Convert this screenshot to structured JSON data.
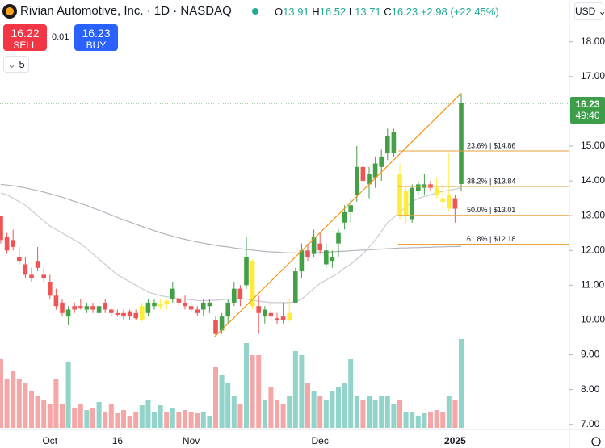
{
  "header": {
    "title": "Rivian Automotive, Inc. · 1D · NASDAQ",
    "o": "O",
    "h": "H",
    "l": "L",
    "c": "C",
    "change": "+2.98 (+22.45%)",
    "sell_price": 16.22,
    "sell": "SELL",
    "spread": 0.01,
    "buy_price": 16.23,
    "buy": "BUY",
    "interval": "5",
    "currency": "USD",
    "countdown": "49:40"
  },
  "chart_data": {
    "type": "candlestick",
    "ylim": [
      6.9,
      19.2
    ],
    "yticks": [
      {
        "value": 7,
        "label": "7.00"
      },
      {
        "value": 8,
        "label": "8.00"
      },
      {
        "value": 9,
        "label": "9.00"
      },
      {
        "value": 10,
        "label": "10.00"
      },
      {
        "value": 11,
        "label": "11.00"
      },
      {
        "value": 12,
        "label": "12.00"
      },
      {
        "value": 13,
        "label": "13.00"
      },
      {
        "value": 14,
        "label": "14.00"
      },
      {
        "value": 15,
        "label": "15.00"
      },
      {
        "value": 16,
        "label": "16.00"
      },
      {
        "value": 17,
        "label": "17.00"
      },
      {
        "value": 18,
        "label": "18.00"
      }
    ],
    "colors": {
      "up": "#43a047",
      "down": "#f05454",
      "highlight": "#ffeb3b",
      "volume_up": "#92d3ca",
      "volume_down": "#f5a6a6",
      "ma_slow": "#b2b5be",
      "ma_fast": "#c9cbd1",
      "trend": "#f7931a",
      "fib": "#e6a23c"
    },
    "categories": [
      null,
      null,
      null,
      null,
      null,
      null,
      null,
      null,
      "Oct",
      null,
      null,
      null,
      null,
      null,
      null,
      null,
      null,
      null,
      null,
      "16",
      null,
      null,
      null,
      null,
      null,
      null,
      null,
      null,
      null,
      null,
      null,
      "Nov",
      null,
      null,
      null,
      null,
      null,
      null,
      null,
      null,
      null,
      null,
      null,
      null,
      null,
      null,
      null,
      null,
      null,
      null,
      null,
      null,
      "Dec",
      null,
      null,
      null,
      null,
      null,
      null,
      null,
      null,
      null,
      null,
      null,
      null,
      null,
      null,
      null,
      null,
      null,
      null,
      null,
      null,
      null,
      "2025",
      null
    ],
    "candles": [
      {
        "o": 13.0,
        "h": 13.0,
        "l": 12.2,
        "c": 12.3,
        "v": 85
      },
      {
        "o": 12.4,
        "h": 12.5,
        "l": 11.9,
        "c": 12.0,
        "v": 60
      },
      {
        "o": 12.3,
        "h": 12.6,
        "l": 12.0,
        "c": 12.1,
        "v": 70
      },
      {
        "o": 11.8,
        "h": 12.1,
        "l": 11.6,
        "c": 11.7,
        "v": 60
      },
      {
        "o": 11.6,
        "h": 11.8,
        "l": 11.2,
        "c": 11.3,
        "v": 55
      },
      {
        "o": 11.3,
        "h": 11.5,
        "l": 11.1,
        "c": 11.2,
        "v": 45
      },
      {
        "o": 11.7,
        "h": 12.1,
        "l": 11.4,
        "c": 11.5,
        "v": 40
      },
      {
        "o": 11.3,
        "h": 11.5,
        "l": 11.1,
        "c": 11.2,
        "v": 35
      },
      {
        "o": 11.1,
        "h": 11.3,
        "l": 10.6,
        "c": 10.7,
        "v": 30
      },
      {
        "o": 10.7,
        "h": 10.9,
        "l": 10.3,
        "c": 10.4,
        "v": 60
      },
      {
        "o": 10.5,
        "h": 10.6,
        "l": 10.1,
        "c": 10.2,
        "v": 30
      },
      {
        "o": 10.1,
        "h": 10.4,
        "l": 9.85,
        "c": 10.3,
        "v": 82
      },
      {
        "o": 10.4,
        "h": 10.5,
        "l": 10.2,
        "c": 10.3,
        "v": 25
      },
      {
        "o": 10.4,
        "h": 10.6,
        "l": 10.3,
        "c": 10.35,
        "v": 30
      },
      {
        "o": 10.3,
        "h": 10.5,
        "l": 10.2,
        "c": 10.4,
        "v": 22
      },
      {
        "o": 10.4,
        "h": 10.5,
        "l": 10.2,
        "c": 10.3,
        "v": 25
      },
      {
        "o": 10.2,
        "h": 10.5,
        "l": 10.1,
        "c": 10.4,
        "v": 32
      },
      {
        "o": 10.5,
        "h": 10.6,
        "l": 10.2,
        "c": 10.3,
        "v": 20
      },
      {
        "o": 10.3,
        "h": 10.35,
        "l": 10.1,
        "c": 10.2,
        "v": 30
      },
      {
        "o": 10.2,
        "h": 10.3,
        "l": 10.1,
        "c": 10.15,
        "v": 18
      },
      {
        "o": 10.2,
        "h": 10.3,
        "l": 10.0,
        "c": 10.1,
        "v": 22
      },
      {
        "o": 10.25,
        "h": 10.3,
        "l": 10.0,
        "c": 10.1,
        "v": 15
      },
      {
        "o": 10.2,
        "h": 10.3,
        "l": 10.0,
        "c": 10.05,
        "v": 20
      },
      {
        "o": 10.0,
        "h": 10.5,
        "l": 9.95,
        "c": 10.4,
        "v": 28,
        "highlight": true
      },
      {
        "o": 10.2,
        "h": 10.6,
        "l": 10.1,
        "c": 10.5,
        "v": 35
      },
      {
        "o": 10.4,
        "h": 10.6,
        "l": 10.3,
        "c": 10.5,
        "v": 20
      },
      {
        "o": 10.4,
        "h": 10.6,
        "l": 10.3,
        "c": 10.45,
        "v": 28,
        "highlight": true
      },
      {
        "o": 10.55,
        "h": 10.6,
        "l": 10.3,
        "c": 10.45,
        "v": 20,
        "highlight": true
      },
      {
        "o": 10.6,
        "h": 11.1,
        "l": 10.5,
        "c": 10.9,
        "v": 25
      },
      {
        "o": 10.6,
        "h": 10.7,
        "l": 10.4,
        "c": 10.5,
        "v": 20
      },
      {
        "o": 10.5,
        "h": 10.7,
        "l": 10.3,
        "c": 10.4,
        "v": 22
      },
      {
        "o": 10.4,
        "h": 10.5,
        "l": 10.2,
        "c": 10.3,
        "v": 20
      },
      {
        "o": 10.3,
        "h": 10.4,
        "l": 10.1,
        "c": 10.2,
        "v": 18
      },
      {
        "o": 10.3,
        "h": 10.6,
        "l": 10.1,
        "c": 10.5,
        "v": 20
      },
      {
        "o": 10.4,
        "h": 10.6,
        "l": 10.2,
        "c": 10.5,
        "v": 15
      },
      {
        "o": 10.0,
        "h": 10.1,
        "l": 9.5,
        "c": 9.6,
        "v": 75
      },
      {
        "o": 9.7,
        "h": 10.2,
        "l": 9.6,
        "c": 10.1,
        "v": 65
      },
      {
        "o": 10.1,
        "h": 10.6,
        "l": 9.9,
        "c": 10.5,
        "v": 55
      },
      {
        "o": 10.5,
        "h": 11.1,
        "l": 10.4,
        "c": 10.9,
        "v": 40
      },
      {
        "o": 10.9,
        "h": 11.0,
        "l": 10.4,
        "c": 10.6,
        "v": 30
      },
      {
        "o": 11.0,
        "h": 12.4,
        "l": 10.9,
        "c": 11.8,
        "v": 105
      },
      {
        "o": 11.7,
        "h": 11.75,
        "l": 10.3,
        "c": 10.4,
        "v": 90,
        "highlight": true
      },
      {
        "o": 10.4,
        "h": 10.7,
        "l": 9.6,
        "c": 10.2,
        "v": 90
      },
      {
        "o": 10.1,
        "h": 10.4,
        "l": 9.9,
        "c": 10.3,
        "v": 35
      },
      {
        "o": 10.2,
        "h": 10.5,
        "l": 10.0,
        "c": 10.1,
        "v": 50
      },
      {
        "o": 10.05,
        "h": 10.2,
        "l": 9.9,
        "c": 10.0,
        "v": 35
      },
      {
        "o": 10.1,
        "h": 10.5,
        "l": 9.9,
        "c": 10.0,
        "v": 30
      },
      {
        "o": 10.0,
        "h": 10.6,
        "l": 9.95,
        "c": 10.2,
        "v": 40,
        "highlight": true
      },
      {
        "o": 10.5,
        "h": 11.5,
        "l": 10.5,
        "c": 11.4,
        "v": 95
      },
      {
        "o": 11.4,
        "h": 12.2,
        "l": 11.2,
        "c": 12.0,
        "v": 90
      },
      {
        "o": 12.0,
        "h": 12.2,
        "l": 11.7,
        "c": 11.8,
        "v": 55
      },
      {
        "o": 11.9,
        "h": 12.6,
        "l": 11.8,
        "c": 12.4,
        "v": 45
      },
      {
        "o": 12.2,
        "h": 12.5,
        "l": 11.9,
        "c": 12.0,
        "v": 40
      },
      {
        "o": 11.6,
        "h": 12.2,
        "l": 11.5,
        "c": 12.0,
        "v": 35
      },
      {
        "o": 11.7,
        "h": 12.0,
        "l": 11.5,
        "c": 11.8,
        "v": 45
      },
      {
        "o": 12.2,
        "h": 12.6,
        "l": 11.8,
        "c": 12.5,
        "v": 50
      },
      {
        "o": 12.8,
        "h": 13.3,
        "l": 12.6,
        "c": 13.1,
        "v": 55
      },
      {
        "o": 13.1,
        "h": 13.5,
        "l": 12.8,
        "c": 13.3,
        "v": 85
      },
      {
        "o": 13.6,
        "h": 15.0,
        "l": 13.4,
        "c": 14.4,
        "v": 40
      },
      {
        "o": 14.4,
        "h": 14.6,
        "l": 13.8,
        "c": 14.0,
        "v": 35
      },
      {
        "o": 13.9,
        "h": 14.4,
        "l": 13.5,
        "c": 14.2,
        "v": 40
      },
      {
        "o": 14.1,
        "h": 14.7,
        "l": 13.8,
        "c": 14.5,
        "v": 35
      },
      {
        "o": 14.4,
        "h": 14.9,
        "l": 14.0,
        "c": 14.7,
        "v": 40
      },
      {
        "o": 14.8,
        "h": 15.5,
        "l": 14.6,
        "c": 15.3,
        "v": 40
      },
      {
        "o": 14.8,
        "h": 15.5,
        "l": 14.7,
        "c": 15.4,
        "v": 30
      },
      {
        "o": 14.2,
        "h": 14.5,
        "l": 12.9,
        "c": 13.0,
        "v": 35,
        "highlight": true
      },
      {
        "o": 13.0,
        "h": 13.8,
        "l": 12.8,
        "c": 13.7,
        "v": 20,
        "highlight": true
      },
      {
        "o": 12.9,
        "h": 13.9,
        "l": 12.8,
        "c": 13.8,
        "v": 20
      },
      {
        "o": 13.7,
        "h": 14.0,
        "l": 13.6,
        "c": 13.9,
        "v": 15
      },
      {
        "o": 13.8,
        "h": 14.2,
        "l": 13.6,
        "c": 13.9,
        "v": 18
      },
      {
        "o": 13.9,
        "h": 14.0,
        "l": 13.7,
        "c": 13.8,
        "v": 20
      },
      {
        "o": 13.8,
        "h": 14.1,
        "l": 13.5,
        "c": 13.6,
        "v": 22,
        "highlight": true
      },
      {
        "o": 13.5,
        "h": 13.9,
        "l": 13.2,
        "c": 13.4,
        "v": 20,
        "highlight": true
      },
      {
        "o": 13.2,
        "h": 14.8,
        "l": 13.1,
        "c": 13.6,
        "v": 40,
        "highlight": true
      },
      {
        "o": 13.5,
        "h": 13.6,
        "l": 12.8,
        "c": 13.2,
        "v": 35
      },
      {
        "o": 13.91,
        "h": 16.52,
        "l": 13.71,
        "c": 16.23,
        "v": 110
      }
    ],
    "ma_slow": [
      13.9,
      13.88,
      13.86,
      13.83,
      13.8,
      13.76,
      13.72,
      13.68,
      13.63,
      13.58,
      13.53,
      13.47,
      13.41,
      13.35,
      13.29,
      13.22,
      13.16,
      13.09,
      13.02,
      12.95,
      12.88,
      12.82,
      12.75,
      12.69,
      12.63,
      12.57,
      12.51,
      12.46,
      12.41,
      12.36,
      12.32,
      12.28,
      12.24,
      12.21,
      12.18,
      12.15,
      12.12,
      12.1,
      12.07,
      12.05,
      12.03,
      12.01,
      11.99,
      11.97,
      11.96,
      11.95,
      11.94,
      11.93,
      11.93,
      11.93,
      11.93,
      11.93,
      11.94,
      11.95,
      11.96,
      11.97,
      11.98,
      11.99,
      12.0,
      12.01,
      12.02,
      12.03,
      12.04,
      12.05,
      12.06,
      12.07,
      12.07,
      12.08,
      12.08,
      12.09,
      12.09,
      12.1,
      12.1,
      12.11,
      12.11,
      12.12
    ],
    "ma_fast": [
      13.65,
      13.6,
      13.5,
      13.4,
      13.3,
      13.15,
      13.0,
      12.85,
      12.7,
      12.6,
      12.5,
      12.4,
      12.3,
      12.2,
      12.05,
      11.9,
      11.75,
      11.6,
      11.45,
      11.3,
      11.2,
      11.1,
      11.0,
      10.9,
      10.8,
      10.75,
      10.7,
      10.67,
      10.64,
      10.62,
      10.6,
      10.58,
      10.56,
      10.55,
      10.56,
      10.57,
      10.58,
      10.6,
      10.62,
      10.62,
      10.6,
      10.57,
      10.54,
      10.52,
      10.5,
      10.5,
      10.5,
      10.5,
      10.52,
      10.6,
      10.75,
      10.9,
      11.05,
      11.15,
      11.25,
      11.35,
      11.5,
      11.6,
      11.75,
      11.9,
      12.1,
      12.3,
      12.55,
      12.8,
      12.95,
      13.1,
      13.25,
      13.4,
      13.5,
      13.55,
      13.6,
      13.65,
      13.7,
      13.73,
      13.76,
      13.8
    ],
    "fib_levels": [
      {
        "label": "23.6% | $14.86",
        "value": 14.86
      },
      {
        "label": "38.2% | $13.84",
        "value": 13.84
      },
      {
        "label": "50.0% | $13.01",
        "value": 13.01
      },
      {
        "label": "61.8% | $12.18",
        "value": 12.18
      }
    ]
  }
}
